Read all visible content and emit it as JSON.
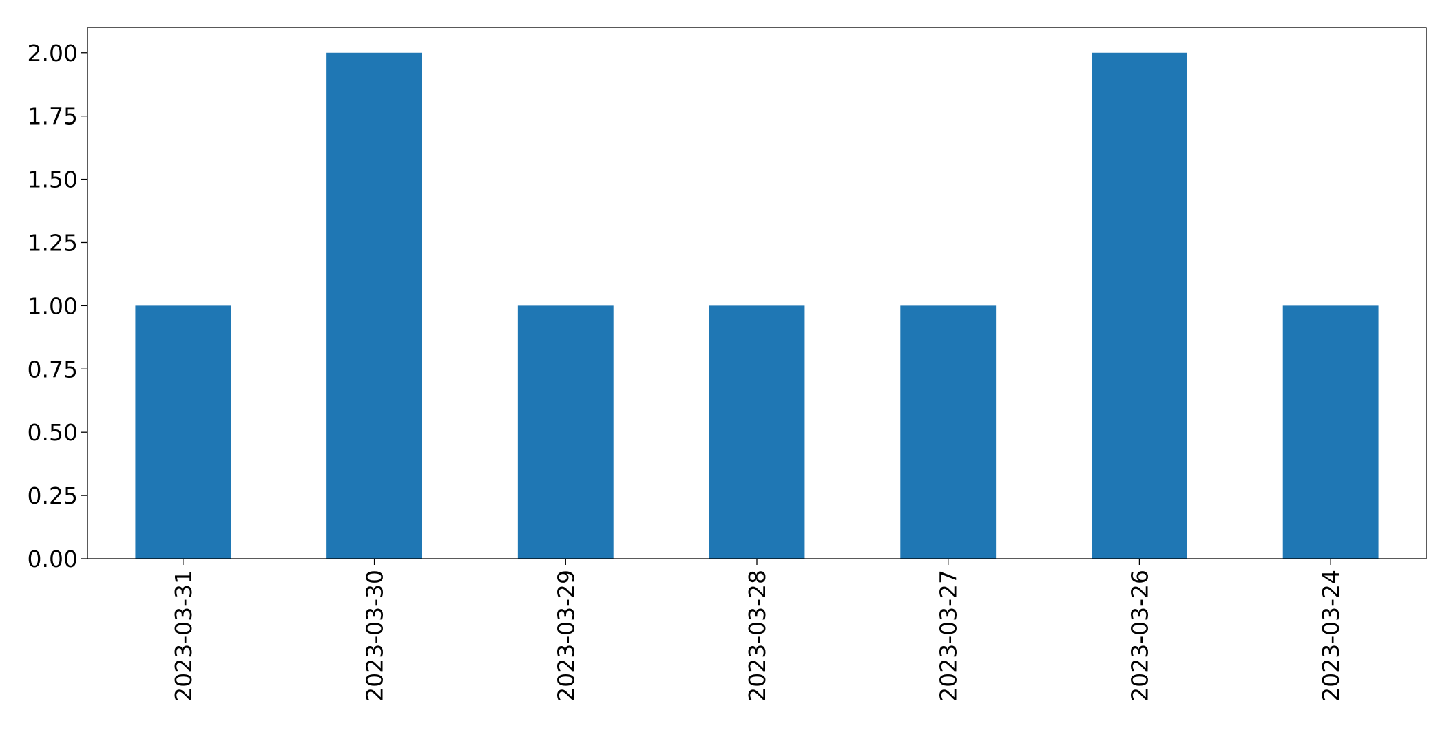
{
  "chart_data": {
    "type": "bar",
    "title": "",
    "xlabel": "",
    "ylabel": "",
    "categories": [
      "2023-03-31",
      "2023-03-30",
      "2023-03-29",
      "2023-03-28",
      "2023-03-27",
      "2023-03-26",
      "2023-03-24"
    ],
    "values": [
      1,
      2,
      1,
      1,
      1,
      2,
      1
    ],
    "ylim": [
      0,
      2.1
    ],
    "yticks": [
      "0.00",
      "0.25",
      "0.50",
      "0.75",
      "1.00",
      "1.25",
      "1.50",
      "1.75",
      "2.00"
    ],
    "ytick_values": [
      0,
      0.25,
      0.5,
      0.75,
      1.0,
      1.25,
      1.5,
      1.75,
      2.0
    ],
    "bar_color": "#1f77b4",
    "grid": false,
    "legend": "none"
  }
}
